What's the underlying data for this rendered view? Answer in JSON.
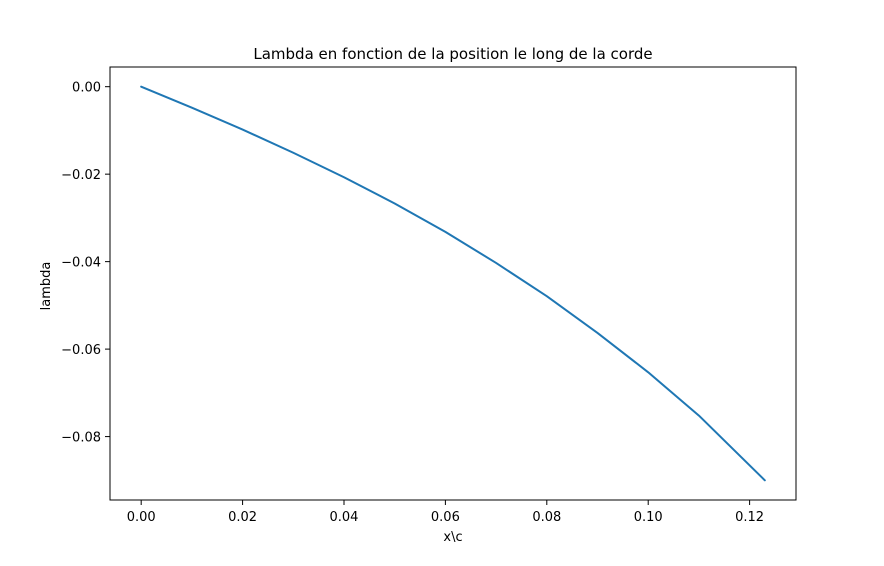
{
  "colors": {
    "series": "#1f77b4",
    "axes": "#000000",
    "background": "#ffffff"
  },
  "chart_data": {
    "type": "line",
    "title": "Lambda en fonction de la position le long de la corde",
    "xlabel": "x\\c",
    "ylabel": "lambda",
    "xlim": [
      -0.00615,
      0.12915
    ],
    "ylim": [
      -0.0945,
      0.0045
    ],
    "grid": false,
    "xticks": [
      0.0,
      0.02,
      0.04,
      0.06,
      0.08,
      0.1,
      0.12
    ],
    "xtick_labels": [
      "0.00",
      "0.02",
      "0.04",
      "0.06",
      "0.08",
      "0.10",
      "0.12"
    ],
    "yticks": [
      0.0,
      -0.02,
      -0.04,
      -0.06,
      -0.08
    ],
    "ytick_labels": [
      "0.00",
      "−0.02",
      "−0.04",
      "−0.06",
      "−0.08"
    ],
    "series": [
      {
        "x": [
          0.0,
          0.01,
          0.02,
          0.03,
          0.04,
          0.05,
          0.06,
          0.07,
          0.08,
          0.09,
          0.1,
          0.11,
          0.123
        ],
        "y": [
          0.0,
          -0.0048,
          -0.0098,
          -0.0151,
          -0.0207,
          -0.0267,
          -0.0332,
          -0.0403,
          -0.0479,
          -0.0563,
          -0.0653,
          -0.0752,
          -0.09
        ]
      }
    ]
  }
}
